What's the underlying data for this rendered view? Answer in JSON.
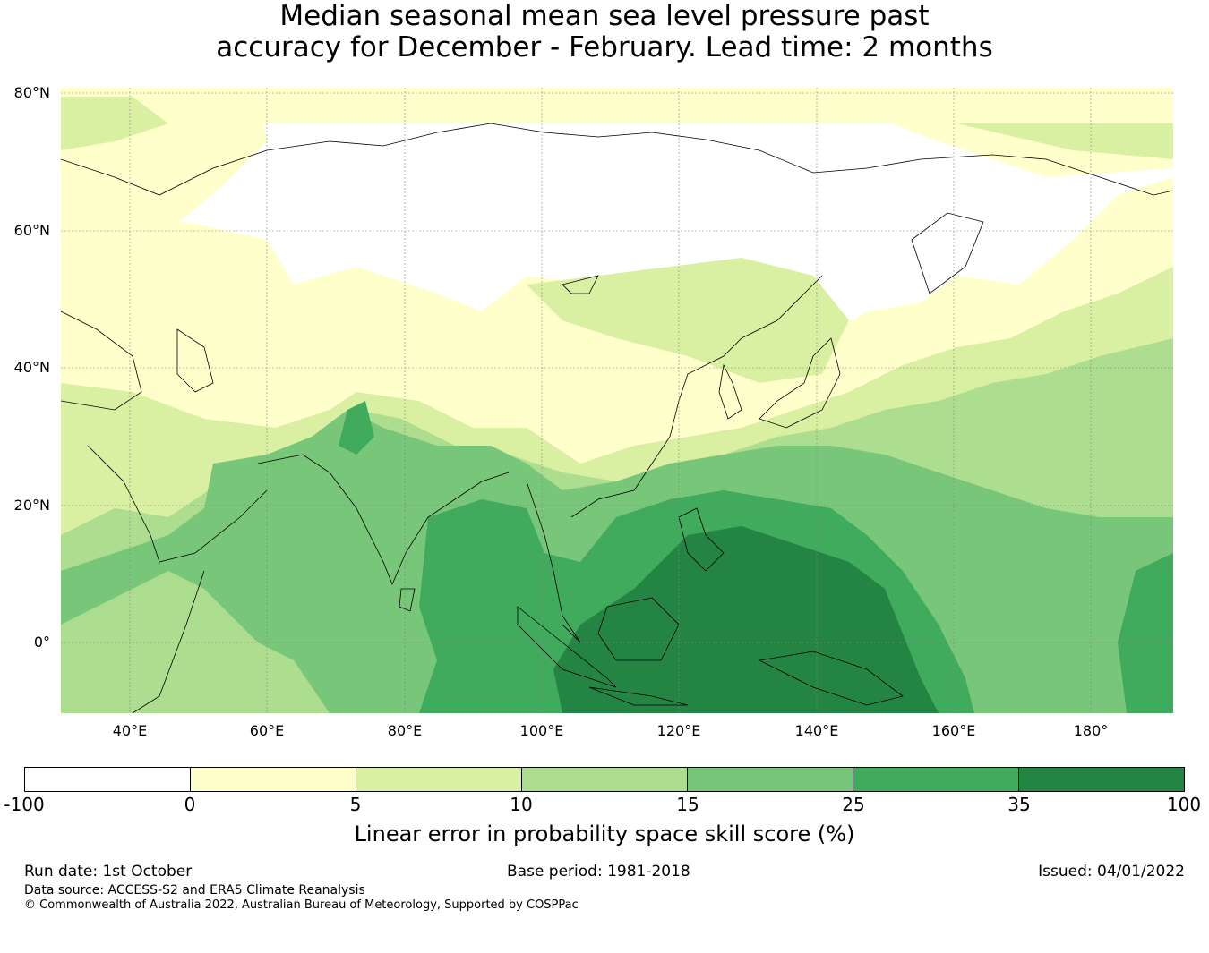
{
  "title": {
    "line1": "Median seasonal mean sea level pressure past",
    "line2": "accuracy for December - February. Lead time: 2 months"
  },
  "map": {
    "lat_labels": [
      "80°N",
      "60°N",
      "40°N",
      "20°N",
      "0°"
    ],
    "lon_labels": [
      "40°E",
      "60°E",
      "80°E",
      "100°E",
      "120°E",
      "140°E",
      "160°E",
      "180°"
    ],
    "lat_values": [
      80,
      60,
      40,
      20,
      0
    ],
    "lon_values": [
      40,
      60,
      80,
      100,
      120,
      140,
      160,
      180
    ],
    "extent": {
      "lon_min": 30,
      "lon_max": 192,
      "lat_min": -10,
      "lat_max": 81
    }
  },
  "colorbar": {
    "ticks": [
      "-100",
      "0",
      "5",
      "10",
      "15",
      "25",
      "35",
      "100"
    ],
    "colors": [
      "#ffffff",
      "#ffffcc",
      "#d9f0a3",
      "#addd8e",
      "#78c679",
      "#41ab5d",
      "#238443"
    ],
    "label": "Linear error in probability space skill score (%)"
  },
  "footer": {
    "run_date": "Run date: 1st October",
    "base_period": "Base period: 1981-2018",
    "issued": "Issued: 04/01/2022",
    "data_source": "Data source: ACCESS-S2 and ERA5 Climate Reanalysis",
    "copyright": "© Commonwealth of Australia 2022, Australian Bureau of Meteorology, Supported by COSPPac"
  }
}
